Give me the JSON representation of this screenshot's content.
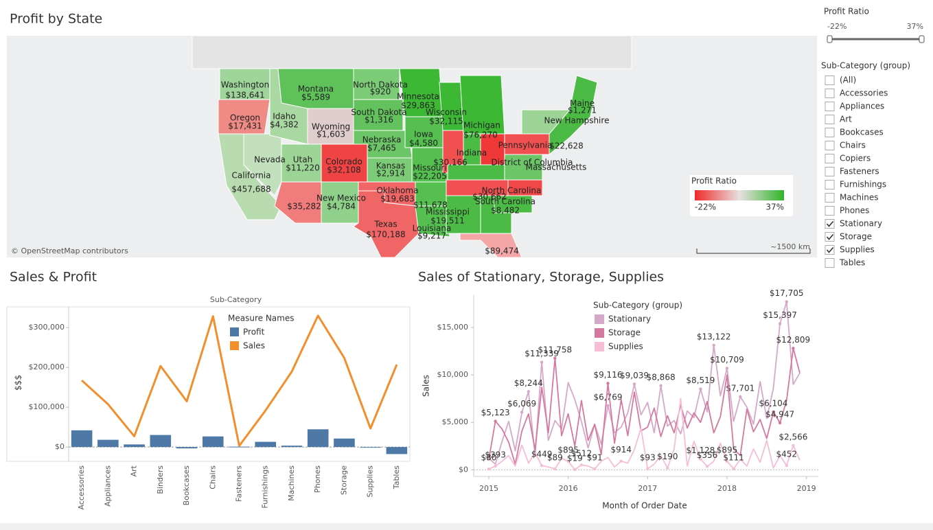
{
  "map": {
    "title": "Profit by State",
    "labels": [
      "Washington",
      "$138,641",
      "Montana",
      "$5,589",
      "North Dakota",
      "$920",
      "Minnesota",
      "$29,863",
      "Oregon",
      "$17,431",
      "Idaho",
      "$4,382",
      "Wyoming",
      "$1,603",
      "South Dakota",
      "$1,316",
      "Wisconsin",
      "$32,115",
      "Michigan",
      "$76,270",
      "Maine",
      "$1,271",
      "New Hampshire",
      "Nebraska",
      "$7,465",
      "Iowa",
      "$4,580",
      "Indiana",
      "$30,166",
      "Pennsylvania",
      "$22,628",
      "Nevada",
      "Utah",
      "$11,220",
      "Colorado",
      "$32,108",
      "Kansas",
      "$2,914",
      "Missouri",
      "$22,205",
      "District of Columbia",
      "Massachusetts",
      "California",
      "$457,688",
      "Oklahoma",
      "$19,683",
      "North Carolina",
      "$30,662",
      "New Mexico",
      "$4,784",
      "$35,282",
      "$11,678",
      "South Carolina",
      "$8,482",
      "Mississippi",
      "$19,511",
      "Texas",
      "$170,188",
      "Louisiana",
      "$9,217",
      "$89,474"
    ],
    "attribution": "© OpenStreetMap contributors",
    "legend": {
      "title": "Profit Ratio",
      "min": "-22%",
      "max": "37%",
      "colors": [
        "#f02a2a",
        "#e8e0e0",
        "#2fb52a"
      ]
    },
    "scale": "~1500 km"
  },
  "filters": {
    "profit_ratio": {
      "title": "Profit Ratio",
      "min": "-22%",
      "max": "37%"
    },
    "sub_category": {
      "title": "Sub-Category (group)",
      "items": [
        {
          "label": "(All)",
          "checked": false
        },
        {
          "label": "Accessories",
          "checked": false
        },
        {
          "label": "Appliances",
          "checked": false
        },
        {
          "label": "Art",
          "checked": false
        },
        {
          "label": "Bookcases",
          "checked": false
        },
        {
          "label": "Chairs",
          "checked": false
        },
        {
          "label": "Copiers",
          "checked": false
        },
        {
          "label": "Fasteners",
          "checked": false
        },
        {
          "label": "Furnishings",
          "checked": false
        },
        {
          "label": "Machines",
          "checked": false
        },
        {
          "label": "Phones",
          "checked": false
        },
        {
          "label": "Stationary",
          "checked": true
        },
        {
          "label": "Storage",
          "checked": true
        },
        {
          "label": "Supplies",
          "checked": true
        },
        {
          "label": "Tables",
          "checked": false
        }
      ]
    }
  },
  "chart_data": [
    {
      "type": "bar",
      "title": "Sales & Profit",
      "x_header": "Sub-Category",
      "ylabel": "$$$",
      "legend_title": "Measure Names",
      "categories": [
        "Accessories",
        "Appliances",
        "Art",
        "Binders",
        "Bookcases",
        "Chairs",
        "Fasteners",
        "Furnishings",
        "Machines",
        "Phones",
        "Storage",
        "Supplies",
        "Tables"
      ],
      "series": [
        {
          "name": "Profit",
          "type": "bar",
          "color": "#4e79a7",
          "values": [
            41937,
            18138,
            6528,
            30222,
            -3473,
            26590,
            950,
            13059,
            3385,
            44516,
            21279,
            -1189,
            -17725
          ]
        },
        {
          "name": "Sales",
          "type": "line",
          "color": "#f28e2b",
          "values": [
            167380,
            107532,
            27119,
            203413,
            114880,
            328449,
            3024,
            91705,
            189239,
            330007,
            223844,
            46674,
            206966
          ]
        }
      ],
      "ylim": [
        -36000,
        352000
      ],
      "yticks": [
        {
          "value": 0,
          "label": "$0"
        },
        {
          "value": 100000,
          "label": "$100,000"
        },
        {
          "value": 200000,
          "label": "$200,000"
        },
        {
          "value": 300000,
          "label": "$300,000"
        }
      ],
      "grid": false
    },
    {
      "type": "line",
      "title": "Sales of Stationary, Storage, Supplies",
      "xlabel": "Month of Order Date",
      "ylabel": "Sales",
      "legend_title": "Sub-Category (group)",
      "x": [
        2015,
        2015.0833,
        2015.1667,
        2015.25,
        2015.3333,
        2015.4167,
        2015.5,
        2015.5833,
        2015.6667,
        2015.75,
        2015.8333,
        2015.9167,
        2016,
        2016.0833,
        2016.1667,
        2016.25,
        2016.3333,
        2016.4167,
        2016.5,
        2016.5833,
        2016.6667,
        2016.75,
        2016.8333,
        2016.9167,
        2017,
        2017.0833,
        2017.1667,
        2017.25,
        2017.3333,
        2017.4167,
        2017.5,
        2017.5833,
        2017.6667,
        2017.75,
        2017.8333,
        2017.9167,
        2018,
        2018.0833,
        2018.1667,
        2018.25,
        2018.3333,
        2018.4167,
        2018.5,
        2018.5833,
        2018.6667,
        2018.75,
        2018.8333,
        2018.9167
      ],
      "series": [
        {
          "name": "Stationary",
          "color": "#d5a8c9",
          "values": [
            1200,
            600,
            3000,
            5100,
            2000,
            6069,
            8244,
            1500,
            11339,
            3100,
            5200,
            4300,
            9200,
            7400,
            5100,
            2300,
            4800,
            2700,
            6769,
            3900,
            4500,
            6000,
            9039,
            5800,
            7100,
            3900,
            8868,
            4600,
            5200,
            3800,
            6200,
            5500,
            8519,
            6100,
            13122,
            7800,
            10709,
            5100,
            7701,
            6600,
            4800,
            9300,
            5400,
            8600,
            15397,
            17705,
            9000,
            10200
          ],
          "value_labels": [
            null,
            null,
            null,
            null,
            null,
            "$6,069",
            "$8,244",
            null,
            "$11,339",
            null,
            null,
            null,
            null,
            null,
            null,
            null,
            null,
            null,
            "$6,769",
            null,
            null,
            null,
            "$9,039",
            null,
            null,
            null,
            "$8,868",
            null,
            null,
            null,
            null,
            null,
            "$8,519",
            null,
            "$13,122",
            null,
            "$10,709",
            null,
            "$7,701",
            null,
            null,
            null,
            null,
            null,
            "$15,397",
            "$17,705",
            null,
            null
          ]
        },
        {
          "name": "Storage",
          "color": "#d4789f",
          "values": [
            1100,
            5123,
            4300,
            2900,
            600,
            4100,
            5900,
            2100,
            8700,
            3900,
            11758,
            3600,
            5900,
            2500,
            7300,
            3100,
            4800,
            1600,
            9116,
            2800,
            7400,
            3600,
            8200,
            4100,
            4500,
            6500,
            3500,
            5700,
            3900,
            6800,
            4400,
            6000,
            5000,
            7200,
            3900,
            5600,
            10000,
            2200,
            1500,
            6400,
            4000,
            5300,
            3300,
            6104,
            4947,
            7300,
            12809,
            10200
          ],
          "value_labels": [
            null,
            "$5,123",
            null,
            null,
            null,
            null,
            null,
            null,
            null,
            null,
            "$11,758",
            null,
            null,
            null,
            null,
            null,
            null,
            null,
            "$9,116",
            null,
            null,
            null,
            null,
            null,
            null,
            null,
            null,
            null,
            null,
            null,
            null,
            null,
            null,
            null,
            null,
            null,
            null,
            null,
            null,
            null,
            null,
            null,
            null,
            "$6,104",
            "$4,947",
            null,
            "$12,809",
            null
          ]
        },
        {
          "name": "Supplies",
          "color": "#f5bdd6",
          "values": [
            80,
            393,
            900,
            1500,
            400,
            2600,
            700,
            1800,
            449,
            300,
            89,
            1200,
            895,
            19,
            512,
            400,
            91,
            900,
            1300,
            300,
            914,
            700,
            2100,
            4400,
            93,
            600,
            1500,
            190,
            2200,
            7500,
            400,
            3000,
            1128,
            356,
            900,
            2800,
            895,
            111,
            1100,
            400,
            2200,
            800,
            3100,
            200,
            1500,
            452,
            2566,
            1000
          ],
          "value_labels": [
            "$80",
            "$393",
            null,
            null,
            null,
            null,
            null,
            null,
            "$449",
            null,
            "$89",
            null,
            "$895",
            "$19",
            "$512",
            null,
            "$91",
            null,
            null,
            null,
            "$914",
            null,
            null,
            null,
            "$93",
            null,
            null,
            "$190",
            null,
            null,
            null,
            null,
            "$1,128",
            "$356",
            null,
            null,
            "$895",
            "$111",
            null,
            null,
            null,
            null,
            null,
            null,
            null,
            "$452",
            "$2,566",
            null
          ]
        }
      ],
      "xlim": [
        2014.81,
        2019.15
      ],
      "xticks": [
        2015,
        2016,
        2017,
        2018,
        2019
      ],
      "ylim": [
        -700,
        18400
      ],
      "yticks": [
        {
          "value": 0,
          "label": "$0"
        },
        {
          "value": 5000,
          "label": "$5,000"
        },
        {
          "value": 10000,
          "label": "$10,000"
        },
        {
          "value": 15000,
          "label": "$15,000"
        }
      ],
      "grid": false
    }
  ]
}
